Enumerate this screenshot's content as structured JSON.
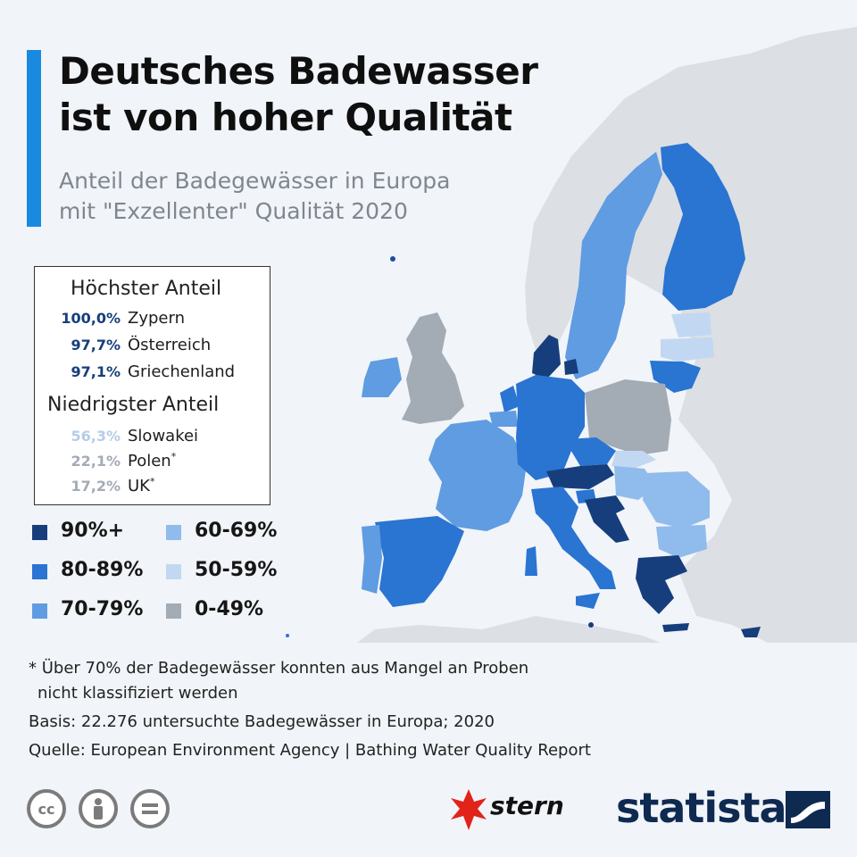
{
  "title_line1": "Deutsches Badewasser",
  "title_line2": "ist von hoher Qualität",
  "subtitle_line1": "Anteil der Badegewässer in Europa",
  "subtitle_line2": "mit \"Exzellenter\" Qualität 2020",
  "highest": {
    "heading": "Höchster Anteil",
    "rows": [
      {
        "value": "100,0%",
        "country": "Zypern",
        "note": ""
      },
      {
        "value": "97,7%",
        "country": "Österreich",
        "note": ""
      },
      {
        "value": "97,1%",
        "country": "Griechenland",
        "note": ""
      }
    ]
  },
  "lowest": {
    "heading": "Niedrigster Anteil",
    "rows": [
      {
        "value": "56,3%",
        "country": "Slowakei",
        "note": ""
      },
      {
        "value": "22,1%",
        "country": "Polen",
        "note": "*"
      },
      {
        "value": "17,2%",
        "country": "UK",
        "note": "*"
      }
    ]
  },
  "legend": [
    {
      "label": "90%+",
      "color": "#163e7c"
    },
    {
      "label": "80-89%",
      "color": "#2a74d2"
    },
    {
      "label": "70-79%",
      "color": "#5f9ce2"
    },
    {
      "label": "60-69%",
      "color": "#90bbed"
    },
    {
      "label": "50-59%",
      "color": "#c2d8f2"
    },
    {
      "label": "0-49%",
      "color": "#a3abb5"
    }
  ],
  "value_colors": {
    "highest": "#163e7c",
    "slowakei": "#b4cde8",
    "low": "#a3abb5"
  },
  "footnote_line1": "* Über 70% der Badegewässer konnten aus Mangel an Proben",
  "footnote_line2": "nicht klassifiziert werden",
  "basis": "Basis: 22.276 untersuchte Badegewässer in Europa; 2020",
  "source": "Quelle: European Environment Agency | Bathing Water Quality Report",
  "brand_stern": "stern",
  "brand_statista": "statista",
  "icons": [
    "cc-icon",
    "attribution-icon",
    "no-derivatives-icon",
    "stern-star-logo",
    "statista-logo-mark"
  ]
}
